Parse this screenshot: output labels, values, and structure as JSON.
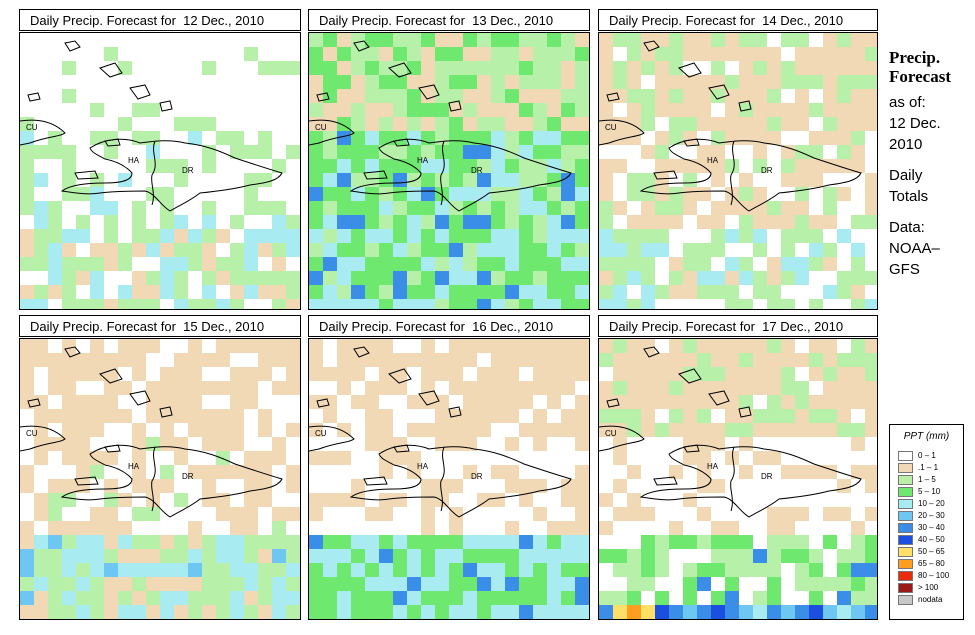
{
  "panels": [
    {
      "title": "Daily Precip. Forecast for  12 Dec., 2010",
      "labels": {
        "cu": "CU",
        "ha": "HA",
        "dr": "DR"
      }
    },
    {
      "title": "Daily Precip. Forecast for  13 Dec., 2010",
      "labels": {
        "cu": "CU",
        "ha": "HA",
        "dr": "DR"
      }
    },
    {
      "title": "Daily Precip. Forecast for  14 Dec., 2010",
      "labels": {
        "cu": "CU",
        "ha": "HA",
        "dr": "DR"
      }
    },
    {
      "title": "Daily Precip. Forecast for  15 Dec., 2010",
      "labels": {
        "cu": "CU",
        "ha": "HA",
        "dr": "DR"
      }
    },
    {
      "title": "Daily Precip. Forecast for  16 Dec., 2010",
      "labels": {
        "cu": "CU",
        "ha": "HA",
        "dr": "DR"
      }
    },
    {
      "title": "Daily Precip. Forecast for  17 Dec., 2010",
      "labels": {
        "cu": "CU",
        "ha": "HA",
        "dr": "DR"
      }
    }
  ],
  "side": {
    "title_line1": "Precip.",
    "title_line2": "Forecast",
    "asof": "as of:",
    "date_line1": "12 Dec.",
    "date_line2": "2010",
    "totals_line1": "Daily",
    "totals_line2": "Totals",
    "data_line1": "Data:",
    "data_line2": "NOAA–",
    "data_line3": "GFS"
  },
  "legend": {
    "title": "PPT (mm)",
    "items": [
      {
        "label": "0 – 1",
        "color": "#ffffff"
      },
      {
        "label": ".1 – 1",
        "color": "#f2d9b6"
      },
      {
        "label": "1 – 5",
        "color": "#b7f0a8"
      },
      {
        "label": "5 – 10",
        "color": "#6ee86e"
      },
      {
        "label": "10 – 20",
        "color": "#a8ecf2"
      },
      {
        "label": "20 – 30",
        "color": "#6ec6f2"
      },
      {
        "label": "30 – 40",
        "color": "#3a8ee8"
      },
      {
        "label": "40 – 50",
        "color": "#1a4fe0"
      },
      {
        "label": "50 – 65",
        "color": "#ffe066"
      },
      {
        "label": "65 – 80",
        "color": "#ff9e1f"
      },
      {
        "label": "80 – 100",
        "color": "#e82a0a"
      },
      {
        "label": "> 100",
        "color": "#9a1a1a"
      },
      {
        "label": "nodata",
        "color": "#c8c8c8"
      }
    ]
  }
}
